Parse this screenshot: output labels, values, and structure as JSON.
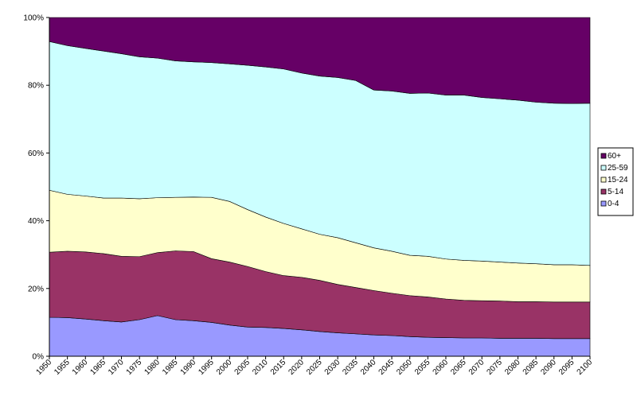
{
  "chart_data": {
    "type": "area",
    "stacked": true,
    "percent": true,
    "title": "",
    "xlabel": "",
    "ylabel": "",
    "x": [
      "1950",
      "1955",
      "1960",
      "1965",
      "1970",
      "1975",
      "1980",
      "1985",
      "1990",
      "1995",
      "2000",
      "2005",
      "2010",
      "2015",
      "2020",
      "2025",
      "2030",
      "2035",
      "2040",
      "2045",
      "2050",
      "2055",
      "2060",
      "2065",
      "2070",
      "2075",
      "2080",
      "2085",
      "2090",
      "2095",
      "2100"
    ],
    "y_ticks": [
      "0%",
      "20%",
      "40%",
      "60%",
      "80%",
      "100%"
    ],
    "ylim": [
      0,
      100
    ],
    "grid": false,
    "legend_position": "right",
    "series": [
      {
        "name": "0-4",
        "color": "#9999ff",
        "values": [
          11.5,
          11.4,
          11.0,
          10.5,
          10.1,
          10.8,
          12.0,
          10.8,
          10.5,
          10.0,
          9.2,
          8.6,
          8.5,
          8.2,
          7.8,
          7.3,
          6.9,
          6.6,
          6.3,
          6.1,
          5.8,
          5.6,
          5.5,
          5.4,
          5.4,
          5.3,
          5.3,
          5.3,
          5.2,
          5.2,
          5.2
        ]
      },
      {
        "name": "5-14",
        "color": "#993366",
        "values": [
          19.2,
          19.6,
          19.8,
          19.8,
          19.4,
          18.6,
          18.6,
          20.3,
          20.4,
          18.8,
          18.6,
          17.9,
          16.5,
          15.6,
          15.5,
          15.1,
          14.3,
          13.7,
          13.1,
          12.5,
          12.1,
          11.9,
          11.4,
          11.1,
          11.0,
          11.0,
          10.8,
          10.8,
          10.8,
          10.8,
          10.8
        ]
      },
      {
        "name": "15-24",
        "color": "#ffffcc",
        "values": [
          18.3,
          16.8,
          16.5,
          16.4,
          17.2,
          17.1,
          16.2,
          15.8,
          16.1,
          18.1,
          17.9,
          16.8,
          16.1,
          15.4,
          14.3,
          13.6,
          13.8,
          13.2,
          12.6,
          12.4,
          11.9,
          12.0,
          11.8,
          11.8,
          11.7,
          11.5,
          11.4,
          11.2,
          11.0,
          11.0,
          10.8
        ]
      },
      {
        "name": "25-59",
        "color": "#ccffff",
        "values": [
          43.9,
          43.9,
          43.6,
          43.4,
          42.6,
          41.9,
          41.2,
          40.3,
          39.9,
          39.8,
          40.6,
          42.6,
          44.3,
          45.6,
          46.0,
          46.7,
          47.3,
          47.9,
          46.6,
          47.3,
          47.8,
          48.2,
          48.4,
          48.8,
          48.3,
          48.2,
          48.1,
          47.7,
          47.7,
          47.6,
          47.9
        ]
      },
      {
        "name": "60+",
        "color": "#660066",
        "values": [
          7.1,
          8.3,
          9.1,
          9.9,
          10.7,
          11.6,
          12.0,
          12.8,
          13.1,
          13.3,
          13.7,
          14.1,
          14.6,
          15.2,
          16.4,
          17.3,
          17.7,
          18.6,
          21.4,
          21.7,
          22.4,
          22.3,
          22.9,
          22.9,
          23.6,
          24.0,
          24.4,
          25.0,
          25.3,
          25.4,
          25.3
        ]
      }
    ]
  }
}
